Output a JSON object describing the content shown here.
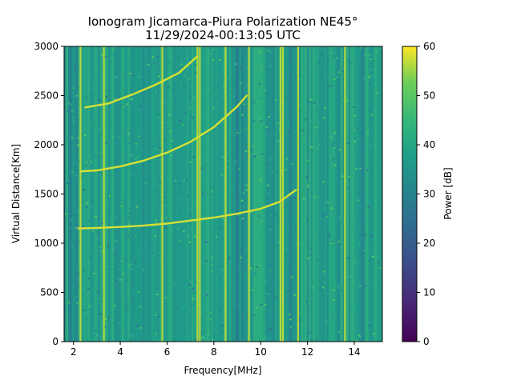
{
  "chart_data": {
    "type": "heatmap",
    "title": "Ionogram Jicamarca-Piura Polarization NE45°",
    "subtitle": "11/29/2024-00:13:05 UTC",
    "xlabel": "Frequency[MHz]",
    "ylabel": "Virtual Distance[Km]",
    "xlim": [
      1.6,
      15.2
    ],
    "ylim": [
      0,
      3000
    ],
    "x_ticks": [
      2,
      4,
      6,
      8,
      10,
      12,
      14
    ],
    "y_ticks": [
      0,
      500,
      1000,
      1500,
      2000,
      2500,
      3000
    ],
    "colorbar": {
      "label": "Power [dB]",
      "range": [
        0,
        60
      ],
      "ticks": [
        0,
        10,
        20,
        30,
        40,
        50,
        60
      ],
      "colormap": "viridis"
    },
    "background_level_db": 38,
    "bright_vertical_lines_mhz": [
      2.3,
      3.3,
      5.8,
      7.3,
      7.4,
      8.5,
      9.5,
      10.85,
      10.95,
      11.6,
      13.6
    ],
    "dark_vertical_bands_mhz": [
      2.0,
      3.9,
      5.0,
      9.1,
      11.3,
      14.2
    ],
    "echo_traces": [
      {
        "points": [
          [
            2.2,
            1150
          ],
          [
            3.0,
            1155
          ],
          [
            4.0,
            1165
          ],
          [
            5.0,
            1180
          ],
          [
            6.0,
            1200
          ],
          [
            7.0,
            1230
          ],
          [
            8.0,
            1260
          ],
          [
            9.0,
            1300
          ],
          [
            10.0,
            1350
          ],
          [
            10.8,
            1420
          ],
          [
            11.5,
            1540
          ]
        ]
      },
      {
        "points": [
          [
            2.3,
            1730
          ],
          [
            3.0,
            1740
          ],
          [
            4.0,
            1780
          ],
          [
            5.0,
            1840
          ],
          [
            6.0,
            1920
          ],
          [
            7.0,
            2030
          ],
          [
            8.0,
            2180
          ],
          [
            9.0,
            2390
          ],
          [
            9.4,
            2500
          ]
        ]
      },
      {
        "points": [
          [
            2.5,
            2380
          ],
          [
            3.5,
            2420
          ],
          [
            4.5,
            2510
          ],
          [
            5.5,
            2610
          ],
          [
            6.5,
            2730
          ],
          [
            7.3,
            2900
          ]
        ]
      }
    ],
    "colors": {
      "viridis_low": "#440154",
      "viridis_mid": "#21918c",
      "viridis_high": "#fde725"
    }
  }
}
